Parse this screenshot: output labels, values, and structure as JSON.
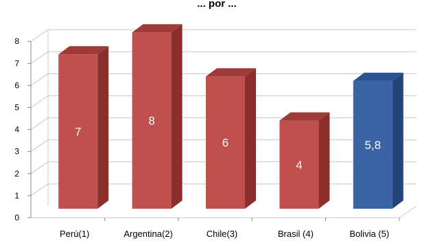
{
  "chart_data": {
    "type": "bar",
    "title": "... por ...",
    "categories": [
      "Perú(1)",
      "Argentina(2)",
      "Chile(3)",
      "Brasil (4)",
      "Bolivia (5)"
    ],
    "values": [
      7,
      8,
      6,
      4,
      5.8
    ],
    "data_labels": [
      "7",
      "8",
      "6",
      "4",
      "5,8"
    ],
    "ylim": [
      0,
      8
    ],
    "yticks": [
      "0",
      "1",
      "2",
      "3",
      "4",
      "5",
      "6",
      "7",
      "8"
    ],
    "grid": true,
    "colors": {
      "default_front": "#c0504d",
      "default_side": "#8c2f2c",
      "default_top": "#9e3a37",
      "highlight_front": "#3a64a3",
      "highlight_side": "#24457a",
      "highlight_top": "#2b5290",
      "grid": "#c8c8c8"
    },
    "highlight_index": 4
  }
}
